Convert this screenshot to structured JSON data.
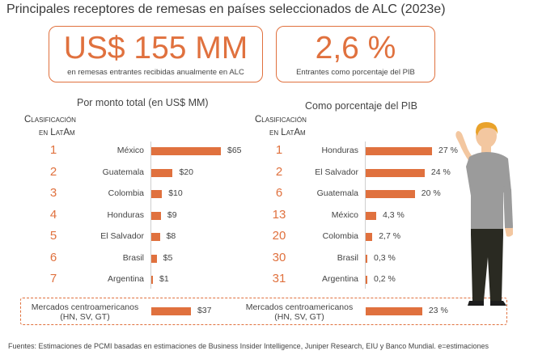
{
  "title": "Principales receptores de remesas en países seleccionados de ALC (2023e)",
  "kpis": [
    {
      "value": "US$ 155 MM",
      "label": "en remesas entrantes recibidas anualmente en ALC"
    },
    {
      "value": "2,6 %",
      "label": "Entrantes como porcentaje del PIB"
    }
  ],
  "rank_header": [
    "Clasificación",
    "en LatAm"
  ],
  "colors": {
    "accent": "#e0713e"
  },
  "illustration": "person-icon",
  "chart_data": [
    {
      "type": "bar",
      "title": "Por monto total (en US$ MM)",
      "ranks": [
        "1",
        "2",
        "3",
        "4",
        "5",
        "6",
        "7"
      ],
      "categories": [
        "México",
        "Guatemala",
        "Colombia",
        "Honduras",
        "El Salvador",
        "Brasil",
        "Argentina"
      ],
      "values": [
        65,
        20,
        10,
        9,
        8,
        5,
        1
      ],
      "value_labels": [
        "$65",
        "$20",
        "$10",
        "$9",
        "$8",
        "$5",
        "$1"
      ],
      "summary": {
        "label": [
          "Mercados centroamericanos",
          "(HN, SV, GT)"
        ],
        "value": 37,
        "value_label": "$37"
      }
    },
    {
      "type": "bar",
      "title": "Como porcentaje del PIB",
      "ranks": [
        "1",
        "2",
        "6",
        "13",
        "20",
        "30",
        "31"
      ],
      "categories": [
        "Honduras",
        "El Salvador",
        "Guatemala",
        "México",
        "Colombia",
        "Brasil",
        "Argentina"
      ],
      "values": [
        27,
        24,
        20,
        4.3,
        2.7,
        0.3,
        0.2
      ],
      "value_labels": [
        "27 %",
        "24 %",
        "20 %",
        "4,3 %",
        "2,7 %",
        "0,3 %",
        "0,2 %"
      ],
      "summary": {
        "label": [
          "Mercados centroamericanos",
          "(HN, SV, GT)"
        ],
        "value": 23,
        "value_label": "23 %"
      }
    }
  ],
  "source": "Fuentes: Estimaciones de PCMI basadas en estimaciones de Business Insider Intelligence, Juniper Research, EIU y Banco Mundial. e=estimaciones"
}
